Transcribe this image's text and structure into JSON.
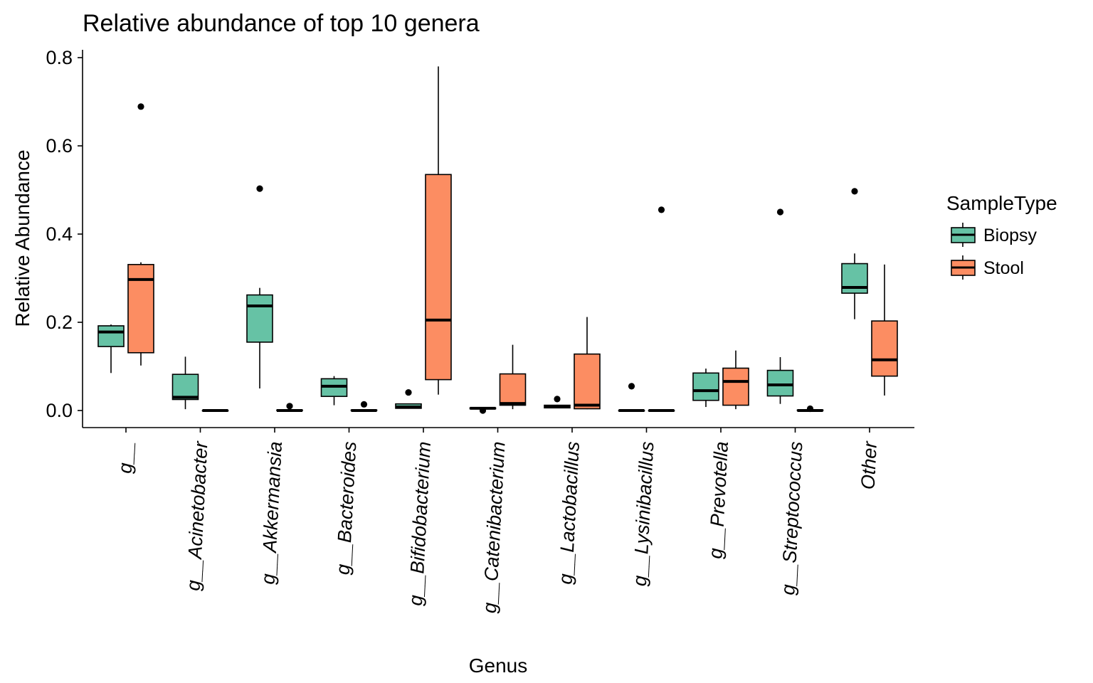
{
  "chart_data": {
    "type": "boxplot",
    "title": "Relative abundance of top 10 genera",
    "xlabel": "Genus",
    "ylabel": "Relative Abundance",
    "ylim": [
      -0.04,
      0.82
    ],
    "yticks": [
      0.0,
      0.2,
      0.4,
      0.6,
      0.8
    ],
    "ytick_labels": [
      "0.0",
      "0.2",
      "0.4",
      "0.6",
      "0.8"
    ],
    "grid": false,
    "legend": {
      "title": "SampleType",
      "placement": "right",
      "entries": [
        {
          "name": "Biopsy",
          "color": "#66C2A5"
        },
        {
          "name": "Stool",
          "color": "#FC8D62"
        }
      ]
    },
    "categories": [
      "g__",
      "g__Acinetobacter",
      "g__Akkermansia",
      "g__Bacteroides",
      "g__Bifidobacterium",
      "g__Catenibacterium",
      "g__Lactobacillus",
      "g__Lysinibacillus",
      "g__Prevotella",
      "g__Streptococcus",
      "Other"
    ],
    "series": [
      {
        "name": "Biopsy",
        "color": "#66C2A5",
        "boxes": [
          {
            "min": 0.085,
            "q1": 0.145,
            "median": 0.178,
            "q3": 0.192,
            "max": 0.195,
            "outliers": []
          },
          {
            "min": 0.003,
            "q1": 0.025,
            "median": 0.03,
            "q3": 0.082,
            "max": 0.122,
            "outliers": []
          },
          {
            "min": 0.05,
            "q1": 0.155,
            "median": 0.237,
            "q3": 0.262,
            "max": 0.278,
            "outliers": [
              0.503
            ]
          },
          {
            "min": 0.012,
            "q1": 0.032,
            "median": 0.055,
            "q3": 0.072,
            "max": 0.078,
            "outliers": []
          },
          {
            "min": 0.004,
            "q1": 0.005,
            "median": 0.008,
            "q3": 0.015,
            "max": 0.016,
            "outliers": [
              0.041
            ]
          },
          {
            "min": 0.003,
            "q1": 0.004,
            "median": 0.005,
            "q3": 0.006,
            "max": 0.007,
            "outliers": [
              0.0
            ]
          },
          {
            "min": 0.005,
            "q1": 0.006,
            "median": 0.009,
            "q3": 0.012,
            "max": 0.013,
            "outliers": [
              0.026
            ]
          },
          {
            "min": 0.0,
            "q1": 0.0,
            "median": 0.0,
            "q3": 0.0,
            "max": 0.0,
            "outliers": [
              0.055
            ]
          },
          {
            "min": 0.008,
            "q1": 0.023,
            "median": 0.045,
            "q3": 0.085,
            "max": 0.095,
            "outliers": []
          },
          {
            "min": 0.015,
            "q1": 0.033,
            "median": 0.058,
            "q3": 0.091,
            "max": 0.121,
            "outliers": [
              0.45
            ]
          },
          {
            "min": 0.207,
            "q1": 0.266,
            "median": 0.279,
            "q3": 0.333,
            "max": 0.356,
            "outliers": [
              0.497
            ]
          }
        ]
      },
      {
        "name": "Stool",
        "color": "#FC8D62",
        "boxes": [
          {
            "min": 0.102,
            "q1": 0.131,
            "median": 0.297,
            "q3": 0.331,
            "max": 0.336,
            "outliers": [
              0.689
            ]
          },
          {
            "min": 0.0,
            "q1": 0.0,
            "median": 0.0,
            "q3": 0.0,
            "max": 0.0,
            "outliers": []
          },
          {
            "min": 0.0,
            "q1": 0.0,
            "median": 0.0,
            "q3": 0.001,
            "max": 0.002,
            "outliers": [
              0.01
            ]
          },
          {
            "min": 0.0,
            "q1": 0.0,
            "median": 0.0,
            "q3": 0.001,
            "max": 0.002,
            "outliers": [
              0.014
            ]
          },
          {
            "min": 0.036,
            "q1": 0.07,
            "median": 0.205,
            "q3": 0.535,
            "max": 0.78,
            "outliers": []
          },
          {
            "min": 0.003,
            "q1": 0.012,
            "median": 0.016,
            "q3": 0.083,
            "max": 0.149,
            "outliers": []
          },
          {
            "min": 0.003,
            "q1": 0.004,
            "median": 0.012,
            "q3": 0.128,
            "max": 0.212,
            "outliers": []
          },
          {
            "min": 0.0,
            "q1": 0.0,
            "median": 0.0,
            "q3": 0.0,
            "max": 0.0,
            "outliers": [
              0.455
            ]
          },
          {
            "min": 0.003,
            "q1": 0.012,
            "median": 0.066,
            "q3": 0.096,
            "max": 0.136,
            "outliers": []
          },
          {
            "min": 0.0,
            "q1": 0.0,
            "median": 0.0,
            "q3": 0.001,
            "max": 0.002,
            "outliers": [
              0.004
            ]
          },
          {
            "min": 0.034,
            "q1": 0.078,
            "median": 0.115,
            "q3": 0.203,
            "max": 0.331,
            "outliers": []
          }
        ]
      }
    ]
  }
}
